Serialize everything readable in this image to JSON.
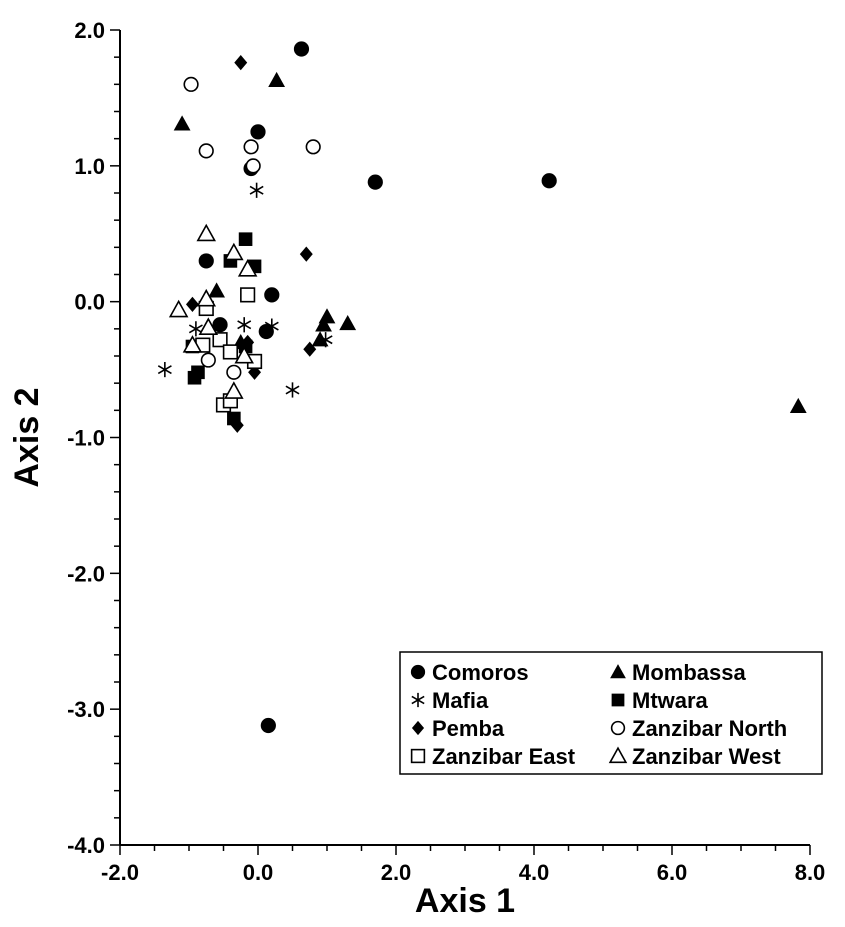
{
  "chart_data": {
    "type": "scatter",
    "xlabel": "Axis 1",
    "ylabel": "Axis 2",
    "xlim": [
      -2.0,
      8.0
    ],
    "ylim": [
      -4.0,
      2.0
    ],
    "x_ticks": [
      "-2.0",
      "0.0",
      "2.0",
      "4.0",
      "6.0",
      "8.0"
    ],
    "y_ticks": [
      "-4.0",
      "-3.0",
      "-2.0",
      "-1.0",
      "0.0",
      "1.0",
      "2.0"
    ],
    "grid": false,
    "legend_position": "bottom-right",
    "series": [
      {
        "name": "Comoros",
        "marker": "filled-circle",
        "points": [
          [
            0.63,
            1.86
          ],
          [
            0.0,
            1.25
          ],
          [
            -0.1,
            0.98
          ],
          [
            1.7,
            0.88
          ],
          [
            4.22,
            0.89
          ],
          [
            -0.75,
            0.3
          ],
          [
            0.2,
            0.05
          ],
          [
            -0.55,
            -0.17
          ],
          [
            0.15,
            -3.12
          ],
          [
            0.12,
            -0.22
          ]
        ]
      },
      {
        "name": "Mombassa",
        "marker": "filled-triangle",
        "points": [
          [
            -1.1,
            1.31
          ],
          [
            0.27,
            1.63
          ],
          [
            -0.6,
            0.08
          ],
          [
            1.0,
            -0.11
          ],
          [
            1.3,
            -0.16
          ],
          [
            0.95,
            -0.17
          ],
          [
            0.9,
            -0.28
          ],
          [
            -0.25,
            -0.3
          ],
          [
            7.83,
            -0.77
          ]
        ]
      },
      {
        "name": "Mafia",
        "marker": "asterisk",
        "points": [
          [
            -0.02,
            0.82
          ],
          [
            -1.35,
            -0.5
          ],
          [
            -0.9,
            -0.2
          ],
          [
            -0.2,
            -0.17
          ],
          [
            0.2,
            -0.18
          ],
          [
            0.5,
            -0.65
          ],
          [
            0.98,
            -0.28
          ]
        ]
      },
      {
        "name": "Mtwara",
        "marker": "filled-square",
        "points": [
          [
            -0.18,
            0.46
          ],
          [
            -0.05,
            0.26
          ],
          [
            -0.4,
            0.3
          ],
          [
            -0.95,
            -0.33
          ],
          [
            -0.87,
            -0.52
          ],
          [
            -0.92,
            -0.56
          ],
          [
            -0.18,
            -0.33
          ],
          [
            -0.35,
            -0.86
          ]
        ]
      },
      {
        "name": "Pemba",
        "marker": "filled-diamond",
        "points": [
          [
            -0.25,
            1.76
          ],
          [
            0.7,
            0.35
          ],
          [
            -0.95,
            -0.02
          ],
          [
            0.75,
            -0.35
          ],
          [
            -0.15,
            -0.3
          ],
          [
            -0.05,
            -0.52
          ],
          [
            -0.3,
            -0.91
          ]
        ]
      },
      {
        "name": "Zanzibar North",
        "marker": "open-circle",
        "points": [
          [
            -0.97,
            1.6
          ],
          [
            -0.75,
            1.11
          ],
          [
            -0.1,
            1.14
          ],
          [
            0.8,
            1.14
          ],
          [
            -0.07,
            1.0
          ],
          [
            -0.72,
            -0.43
          ],
          [
            -0.35,
            -0.52
          ]
        ]
      },
      {
        "name": "Zanzibar East",
        "marker": "open-square",
        "points": [
          [
            -0.15,
            0.05
          ],
          [
            -0.75,
            -0.05
          ],
          [
            -0.8,
            -0.32
          ],
          [
            -0.55,
            -0.28
          ],
          [
            -0.4,
            -0.37
          ],
          [
            -0.05,
            -0.44
          ],
          [
            -0.5,
            -0.76
          ],
          [
            -0.4,
            -0.73
          ]
        ]
      },
      {
        "name": "Zanzibar West",
        "marker": "open-triangle",
        "points": [
          [
            -0.75,
            0.5
          ],
          [
            -0.35,
            0.36
          ],
          [
            -0.15,
            0.24
          ],
          [
            -0.75,
            0.02
          ],
          [
            -1.15,
            -0.06
          ],
          [
            -0.95,
            -0.32
          ],
          [
            -0.72,
            -0.19
          ],
          [
            -0.35,
            -0.66
          ],
          [
            -0.2,
            -0.4
          ]
        ]
      }
    ]
  }
}
